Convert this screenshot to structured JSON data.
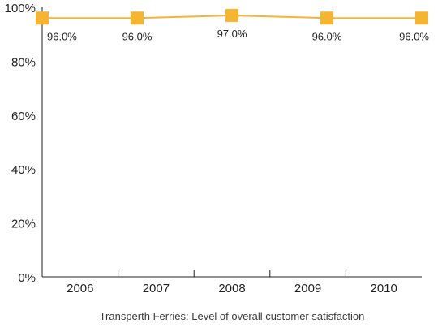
{
  "chart_data": {
    "type": "line",
    "title": "Transperth Ferries: Level of overall customer satisfaction",
    "categories": [
      "2006",
      "2007",
      "2008",
      "2009",
      "2010"
    ],
    "series": [
      {
        "values": [
          96.0,
          96.0,
          97.0,
          96.0,
          96.0
        ],
        "labels": [
          "96.0%",
          "96.0%",
          "97.0%",
          "96.0%",
          "96.0%"
        ],
        "color": "#f5b532",
        "marker": "square"
      }
    ],
    "ylim": [
      0,
      100
    ],
    "yticks": [
      "0%",
      "20%",
      "40%",
      "60%",
      "80%",
      "100%"
    ],
    "grid": false,
    "legend": "none"
  }
}
